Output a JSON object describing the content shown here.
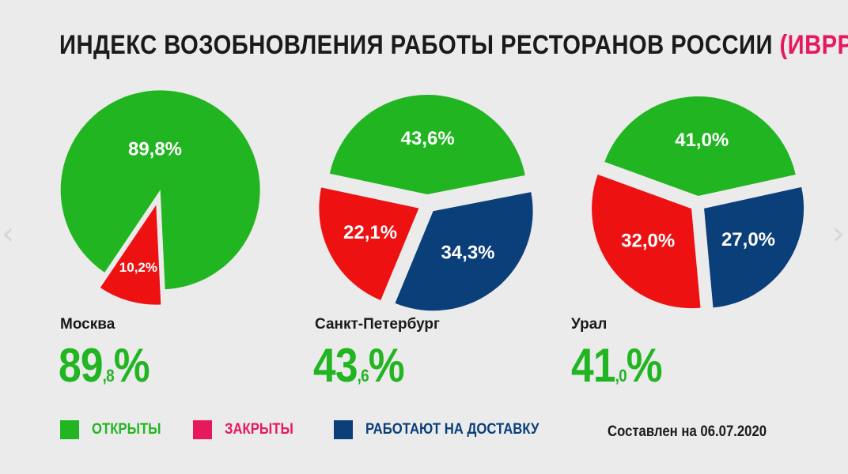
{
  "title": {
    "main": "ИНДЕКС ВОЗОБНОВЛЕНИЯ РАБОТЫ РЕСТОРАНОВ РОССИИ",
    "accent": "(ИВРР)"
  },
  "colors": {
    "open": "#22b522",
    "closed": "#ee1111",
    "delivery": "#0b3f7a",
    "accent": "#e6195c"
  },
  "chart_data": [
    {
      "type": "pie",
      "city": "Москва",
      "slices": [
        {
          "key": "open",
          "value": 89.8,
          "label": "89,8%"
        },
        {
          "key": "closed",
          "value": 10.2,
          "label": "10,2%"
        }
      ],
      "headline": {
        "int": "89",
        "dec": ",8",
        "unit": "%"
      }
    },
    {
      "type": "pie",
      "city": "Санкт-Петербург",
      "slices": [
        {
          "key": "open",
          "value": 43.6,
          "label": "43,6%"
        },
        {
          "key": "delivery",
          "value": 34.3,
          "label": "34,3%"
        },
        {
          "key": "closed",
          "value": 22.1,
          "label": "22,1%"
        }
      ],
      "headline": {
        "int": "43",
        "dec": ",6",
        "unit": "%"
      }
    },
    {
      "type": "pie",
      "city": "Урал",
      "slices": [
        {
          "key": "open",
          "value": 41.0,
          "label": "41,0%"
        },
        {
          "key": "delivery",
          "value": 27.0,
          "label": "27,0%"
        },
        {
          "key": "closed",
          "value": 32.0,
          "label": "32,0%"
        }
      ],
      "headline": {
        "int": "41",
        "dec": ",0",
        "unit": "%"
      }
    }
  ],
  "legend": [
    {
      "key": "open",
      "label": "ОТКРЫТЫ",
      "color": "#22b522"
    },
    {
      "key": "closed",
      "label": "ЗАКРЫТЫ",
      "color": "#e6195c"
    },
    {
      "key": "delivery",
      "label": "РАБОТАЮТ НА ДОСТАВКУ",
      "color": "#0b3f7a"
    }
  ],
  "compiled_note": "Составлен на 06.07.2020",
  "nav": {
    "prev_icon": "chevron-left-icon",
    "next_icon": "chevron-right-icon",
    "prev_glyph": "‹",
    "next_glyph": "›"
  }
}
